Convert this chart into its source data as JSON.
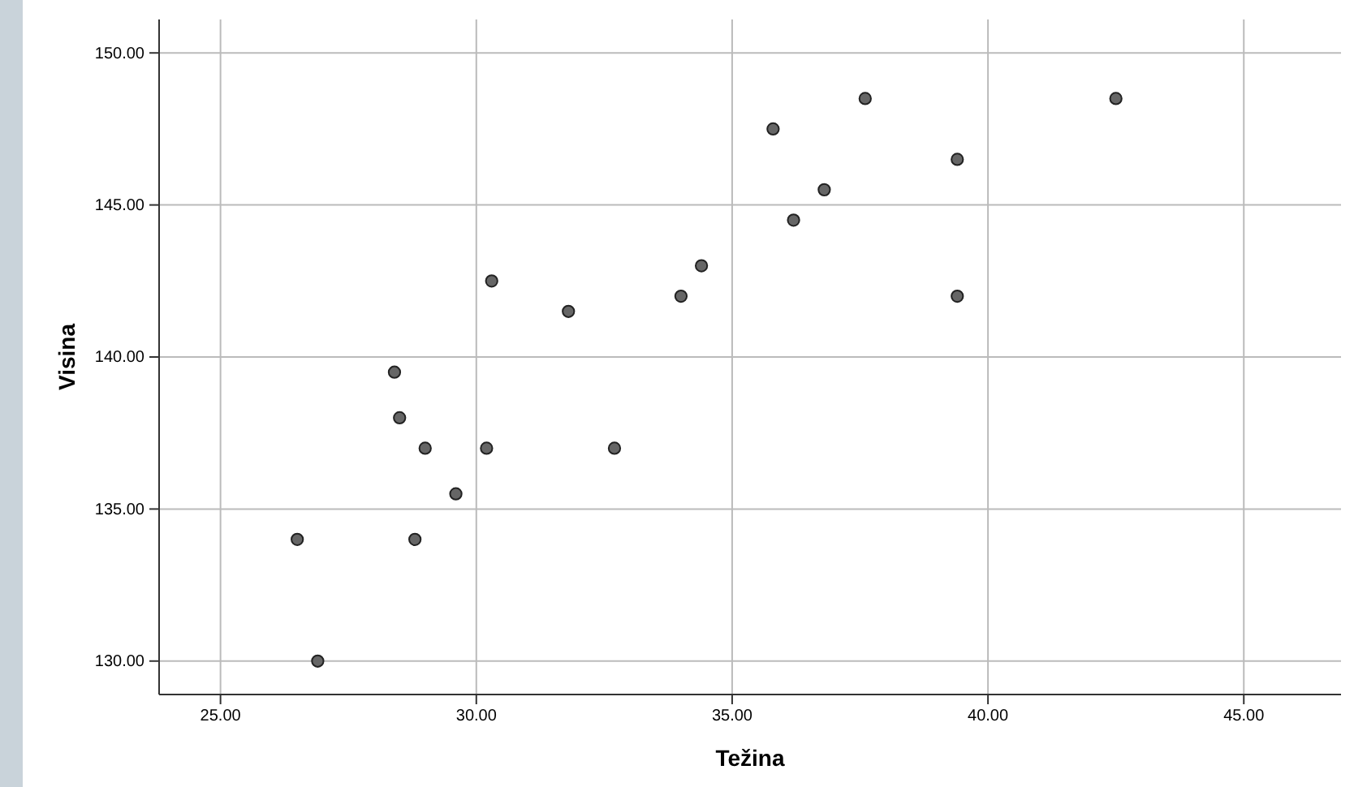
{
  "chart_data": {
    "type": "scatter",
    "xlabel": "Težina",
    "ylabel": "Visina",
    "x": [
      26.5,
      26.9,
      28.4,
      28.5,
      29.0,
      28.8,
      29.6,
      30.2,
      30.3,
      31.8,
      32.7,
      34.0,
      34.4,
      35.8,
      36.2,
      36.8,
      37.6,
      39.4,
      39.4,
      42.5
    ],
    "series": [
      {
        "color": "#666666",
        "values": [
          134.0,
          130.0,
          139.5,
          138.0,
          137.0,
          134.0,
          135.5,
          137.0,
          142.5,
          141.5,
          137.0,
          142.0,
          143.0,
          147.5,
          144.5,
          145.5,
          148.5,
          146.5,
          142.0,
          148.5
        ]
      }
    ],
    "xlim": [
      23.8,
      46.9
    ],
    "ylim": [
      128.9,
      151.1
    ],
    "xticks": [
      {
        "value": 25,
        "label": "25.00"
      },
      {
        "value": 30,
        "label": "30.00"
      },
      {
        "value": 35,
        "label": "35.00"
      },
      {
        "value": 40,
        "label": "40.00"
      },
      {
        "value": 45,
        "label": "45.00"
      }
    ],
    "yticks": [
      {
        "value": 130,
        "label": "130.00"
      },
      {
        "value": 135,
        "label": "135.00"
      },
      {
        "value": 140,
        "label": "140.00"
      },
      {
        "value": 145,
        "label": "145.00"
      },
      {
        "value": 150,
        "label": "150.00"
      }
    ],
    "grid": true,
    "marker": "circle"
  }
}
